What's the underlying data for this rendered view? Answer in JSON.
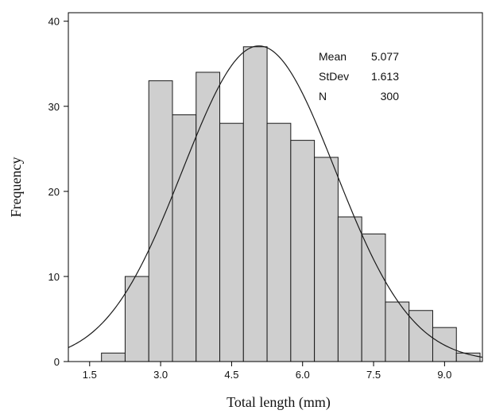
{
  "chart_data": {
    "type": "bar",
    "subtype": "histogram-with-normal-fit",
    "xlabel": "Total length (mm)",
    "ylabel": "Frequency",
    "xlim": [
      1.05,
      9.8
    ],
    "ylim": [
      0,
      41
    ],
    "x_ticks": [
      1.5,
      3.0,
      4.5,
      6.0,
      7.5,
      9.0
    ],
    "x_tick_labels": [
      "1.5",
      "3.0",
      "4.5",
      "6.0",
      "7.5",
      "9.0"
    ],
    "y_ticks": [
      0,
      10,
      20,
      30,
      40
    ],
    "y_tick_labels": [
      "0",
      "10",
      "20",
      "30",
      "40"
    ],
    "bin_width": 0.5,
    "bins": [
      {
        "center": 2.0,
        "count": 1
      },
      {
        "center": 2.5,
        "count": 10
      },
      {
        "center": 3.0,
        "count": 33
      },
      {
        "center": 3.5,
        "count": 29
      },
      {
        "center": 4.0,
        "count": 34
      },
      {
        "center": 4.5,
        "count": 28
      },
      {
        "center": 5.0,
        "count": 37
      },
      {
        "center": 5.5,
        "count": 28
      },
      {
        "center": 6.0,
        "count": 26
      },
      {
        "center": 6.5,
        "count": 24
      },
      {
        "center": 7.0,
        "count": 17
      },
      {
        "center": 7.5,
        "count": 15
      },
      {
        "center": 8.0,
        "count": 7
      },
      {
        "center": 8.5,
        "count": 6
      },
      {
        "center": 9.0,
        "count": 4
      },
      {
        "center": 9.5,
        "count": 1
      }
    ],
    "fit": {
      "mean": 5.077,
      "stdev": 1.613,
      "n": 300
    },
    "stats": [
      {
        "label": "Mean",
        "value": "5.077"
      },
      {
        "label": "StDev",
        "value": "1.613"
      },
      {
        "label": "N",
        "value": "300"
      }
    ],
    "grid": false,
    "colors": {
      "bar_fill": "#cfcfcf",
      "bar_stroke": "#1a1a1a",
      "curve": "#1a1a1a",
      "axis": "#000000"
    }
  }
}
